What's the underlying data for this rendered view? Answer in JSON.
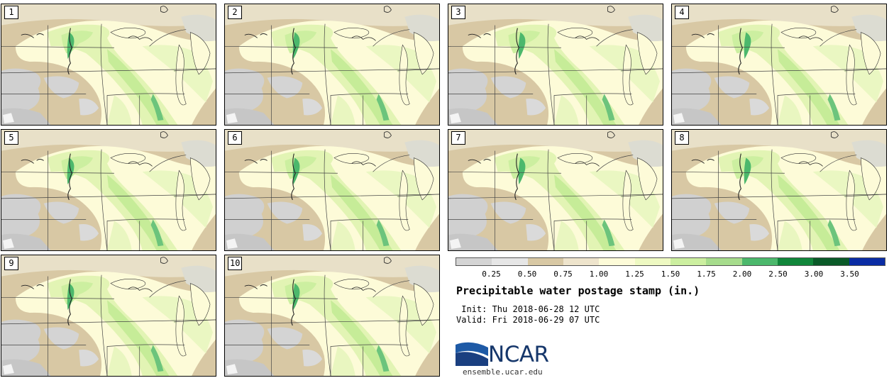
{
  "map": {
    "title": "Precipitable water postage stamp (in.)",
    "init": "Init: Thu 2018-06-28 12 UTC",
    "valid": "Valid: Fri 2018-06-29 07 UTC",
    "init_line": " Init: Thu 2018-06-28 12 UTC",
    "valid_line": "Valid: Fri 2018-06-29 07 UTC",
    "members": [
      "1",
      "2",
      "3",
      "4",
      "5",
      "6",
      "7",
      "8",
      "9",
      "10"
    ]
  },
  "colorbar": {
    "labels": [
      "0.25",
      "0.50",
      "0.75",
      "1.00",
      "1.25",
      "1.50",
      "1.75",
      "2.00",
      "2.50",
      "3.00",
      "3.50"
    ],
    "colors": [
      "#d4d4d4",
      "#e6e6e6",
      "#d8c8a4",
      "#eee4cc",
      "#fdfbd8",
      "#eef9c2",
      "#ccefa0",
      "#a6dc8c",
      "#4cb86c",
      "#11863a",
      "#0a5a28",
      "#0a2ca4"
    ]
  },
  "logo": {
    "text": "NCAR",
    "url": "ensemble.ucar.edu"
  }
}
